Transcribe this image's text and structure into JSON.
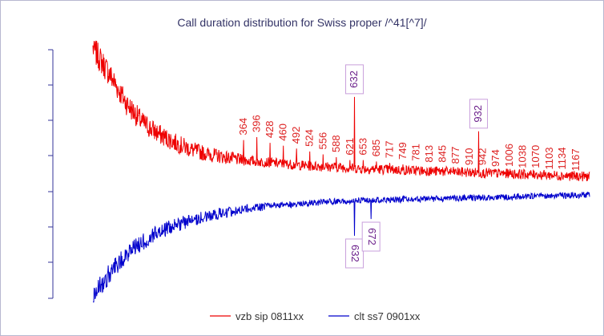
{
  "chart_data": {
    "type": "line",
    "title": "Call duration distribution for Swiss proper /^41[^7]/",
    "xlabel": "",
    "ylabel": "",
    "grid": false,
    "legend_position": "bottom-center",
    "series": [
      {
        "name": "vzb sip 0811xx",
        "color": "#ee0000",
        "direction": "up",
        "envelope": [
          [
            0,
            1.0
          ],
          [
            40,
            0.82
          ],
          [
            80,
            0.62
          ],
          [
            120,
            0.48
          ],
          [
            160,
            0.4
          ],
          [
            200,
            0.34
          ],
          [
            240,
            0.29
          ],
          [
            280,
            0.26
          ],
          [
            320,
            0.24
          ],
          [
            360,
            0.22
          ],
          [
            400,
            0.21
          ],
          [
            440,
            0.2
          ],
          [
            480,
            0.19
          ],
          [
            520,
            0.18
          ],
          [
            560,
            0.175
          ],
          [
            600,
            0.17
          ],
          [
            650,
            0.16
          ],
          [
            700,
            0.155
          ],
          [
            750,
            0.15
          ],
          [
            800,
            0.145
          ],
          [
            850,
            0.14
          ],
          [
            900,
            0.135
          ],
          [
            950,
            0.13
          ],
          [
            1000,
            0.125
          ],
          [
            1050,
            0.12
          ],
          [
            1100,
            0.115
          ],
          [
            1150,
            0.11
          ],
          [
            1200,
            0.105
          ]
        ],
        "peaks": [
          {
            "x": 364,
            "y": 0.36,
            "label": "364"
          },
          {
            "x": 396,
            "y": 0.38,
            "label": "396"
          },
          {
            "x": 428,
            "y": 0.34,
            "label": "428"
          },
          {
            "x": 460,
            "y": 0.32,
            "label": "460"
          },
          {
            "x": 492,
            "y": 0.3,
            "label": "492"
          },
          {
            "x": 524,
            "y": 0.28,
            "label": "524"
          },
          {
            "x": 556,
            "y": 0.26,
            "label": "556"
          },
          {
            "x": 588,
            "y": 0.24,
            "label": "588"
          },
          {
            "x": 621,
            "y": 0.22,
            "label": "621"
          },
          {
            "x": 632,
            "y": 0.66,
            "label": "632",
            "boxed": true
          },
          {
            "x": 653,
            "y": 0.22,
            "label": "653"
          },
          {
            "x": 685,
            "y": 0.21,
            "label": "685"
          },
          {
            "x": 717,
            "y": 0.2,
            "label": "717"
          },
          {
            "x": 749,
            "y": 0.19,
            "label": "749"
          },
          {
            "x": 781,
            "y": 0.18,
            "label": "781"
          },
          {
            "x": 813,
            "y": 0.17,
            "label": "813"
          },
          {
            "x": 845,
            "y": 0.17,
            "label": "845"
          },
          {
            "x": 877,
            "y": 0.16,
            "label": "877"
          },
          {
            "x": 910,
            "y": 0.15,
            "label": "910"
          },
          {
            "x": 932,
            "y": 0.42,
            "label": "932",
            "boxed": true
          },
          {
            "x": 942,
            "y": 0.15,
            "label": "942"
          },
          {
            "x": 974,
            "y": 0.14,
            "label": "974"
          },
          {
            "x": 1006,
            "y": 0.14,
            "label": "1006"
          },
          {
            "x": 1038,
            "y": 0.13,
            "label": "1038"
          },
          {
            "x": 1070,
            "y": 0.13,
            "label": "1070"
          },
          {
            "x": 1103,
            "y": 0.12,
            "label": "1103"
          },
          {
            "x": 1134,
            "y": 0.12,
            "label": "1134"
          },
          {
            "x": 1167,
            "y": 0.11,
            "label": "1167"
          }
        ]
      },
      {
        "name": "clt ss7 0901xx",
        "color": "#0000cc",
        "direction": "down",
        "envelope": [
          [
            0,
            1.0
          ],
          [
            40,
            0.78
          ],
          [
            80,
            0.6
          ],
          [
            120,
            0.48
          ],
          [
            160,
            0.38
          ],
          [
            200,
            0.32
          ],
          [
            240,
            0.27
          ],
          [
            280,
            0.23
          ],
          [
            320,
            0.2
          ],
          [
            360,
            0.17
          ],
          [
            400,
            0.15
          ],
          [
            440,
            0.13
          ],
          [
            480,
            0.12
          ],
          [
            520,
            0.11
          ],
          [
            560,
            0.1
          ],
          [
            600,
            0.09
          ],
          [
            650,
            0.085
          ],
          [
            700,
            0.08
          ],
          [
            750,
            0.075
          ],
          [
            800,
            0.07
          ],
          [
            850,
            0.065
          ],
          [
            900,
            0.06
          ],
          [
            950,
            0.055
          ],
          [
            1000,
            0.05
          ],
          [
            1050,
            0.045
          ],
          [
            1100,
            0.04
          ],
          [
            1150,
            0.035
          ],
          [
            1200,
            0.03
          ]
        ],
        "peaks": [
          {
            "x": 632,
            "y": 0.42,
            "label": "632",
            "boxed": true
          },
          {
            "x": 672,
            "y": 0.26,
            "label": "672",
            "boxed": true
          }
        ]
      }
    ]
  }
}
